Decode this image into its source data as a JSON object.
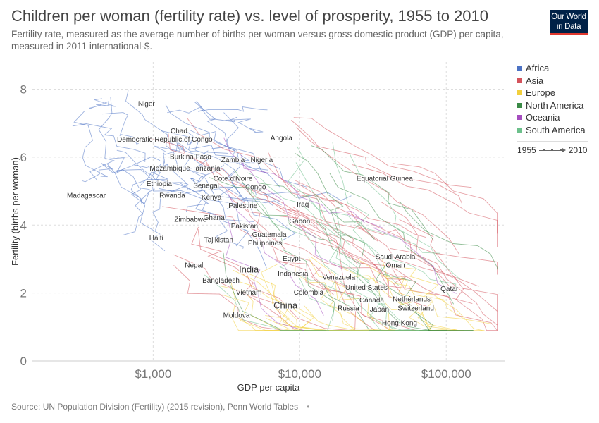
{
  "header": {
    "title": "Children per woman (fertility rate) vs. level of prosperity, 1955 to 2010",
    "subtitle": "Fertility rate, measured as the average number of births per woman versus gross domestic product (GDP) per capita, measured in 2011 international-$.",
    "logo_line1": "Our World",
    "logo_line2": "in Data"
  },
  "footer": {
    "source": "Source: UN Population Division (Fertility) (2015 revision), Penn World Tables"
  },
  "legend": {
    "timeline_start": "1955",
    "timeline_end": "2010"
  },
  "colors": {
    "Africa": "#4c72c4",
    "Asia": "#d4535c",
    "Europe": "#f2cf3c",
    "North America": "#3a8a46",
    "Oceania": "#a54dbf",
    "South America": "#6cc08b",
    "grid": "#dddddd",
    "axis_text": "#777777"
  },
  "chart_data": {
    "type": "scatter",
    "title": "Children per woman (fertility rate) vs. level of prosperity, 1955 to 2010",
    "xlabel": "GDP per capita",
    "ylabel": "Fertility (births per woman)",
    "x_scale": "log",
    "xlim": [
      150,
      250000
    ],
    "ylim": [
      0,
      8.8
    ],
    "x_ticks": [
      1000,
      10000,
      100000
    ],
    "x_tick_labels": [
      "$1,000",
      "$10,000",
      "$100,000"
    ],
    "y_ticks": [
      0,
      2,
      4,
      6,
      8
    ],
    "y_tick_labels": [
      "0",
      "2",
      "4",
      "6",
      "8"
    ],
    "legend_position": "right",
    "series_names": [
      "Africa",
      "Asia",
      "Europe",
      "North America",
      "Oceania",
      "South America"
    ],
    "labels": [
      {
        "name": "Niger",
        "x": 900,
        "y": 7.5
      },
      {
        "name": "Chad",
        "x": 1500,
        "y": 6.7
      },
      {
        "name": "Democratic Republic of Congo",
        "x": 1200,
        "y": 6.45
      },
      {
        "name": "Angola",
        "x": 7500,
        "y": 6.5
      },
      {
        "name": "Burkina Faso",
        "x": 1800,
        "y": 5.95
      },
      {
        "name": "Zambia",
        "x": 3500,
        "y": 5.85
      },
      {
        "name": "Nigeria",
        "x": 5500,
        "y": 5.85
      },
      {
        "name": "Mozambique",
        "x": 1300,
        "y": 5.6
      },
      {
        "name": "Tanzania",
        "x": 2300,
        "y": 5.6
      },
      {
        "name": "Equatorial Guinea",
        "x": 38000,
        "y": 5.3
      },
      {
        "name": "Cote d'Ivoire",
        "x": 3500,
        "y": 5.3
      },
      {
        "name": "Ethiopia",
        "x": 1100,
        "y": 5.15
      },
      {
        "name": "Senegal",
        "x": 2300,
        "y": 5.1
      },
      {
        "name": "Congo",
        "x": 5000,
        "y": 5.05
      },
      {
        "name": "Madagascar",
        "x": 350,
        "y": 4.8
      },
      {
        "name": "Rwanda",
        "x": 1350,
        "y": 4.8
      },
      {
        "name": "Kenya",
        "x": 2500,
        "y": 4.75
      },
      {
        "name": "Iraq",
        "x": 10500,
        "y": 4.55
      },
      {
        "name": "Palestine",
        "x": 4100,
        "y": 4.5
      },
      {
        "name": "Zimbabwe",
        "x": 1800,
        "y": 4.1
      },
      {
        "name": "Ghana",
        "x": 2600,
        "y": 4.15
      },
      {
        "name": "Gabon",
        "x": 10000,
        "y": 4.05
      },
      {
        "name": "Pakistan",
        "x": 4200,
        "y": 3.9
      },
      {
        "name": "Guatemala",
        "x": 6200,
        "y": 3.65
      },
      {
        "name": "Haiti",
        "x": 1050,
        "y": 3.55
      },
      {
        "name": "Tajikistan",
        "x": 2800,
        "y": 3.5
      },
      {
        "name": "Philippines",
        "x": 5800,
        "y": 3.4
      },
      {
        "name": "Saudi Arabia",
        "x": 45000,
        "y": 3.0
      },
      {
        "name": "Egypt",
        "x": 8800,
        "y": 2.95
      },
      {
        "name": "Nepal",
        "x": 1900,
        "y": 2.75
      },
      {
        "name": "Oman",
        "x": 45000,
        "y": 2.75
      },
      {
        "name": "India",
        "x": 4500,
        "y": 2.6
      },
      {
        "name": "Indonesia",
        "x": 9000,
        "y": 2.5
      },
      {
        "name": "Venezuela",
        "x": 18500,
        "y": 2.4
      },
      {
        "name": "Bangladesh",
        "x": 2900,
        "y": 2.3
      },
      {
        "name": "United States",
        "x": 28500,
        "y": 2.1
      },
      {
        "name": "Qatar",
        "x": 105000,
        "y": 2.05
      },
      {
        "name": "Colombia",
        "x": 11500,
        "y": 1.95
      },
      {
        "name": "Vietnam",
        "x": 4500,
        "y": 1.95
      },
      {
        "name": "Nethérlands",
        "x": 58000,
        "y": 1.75
      },
      {
        "name": "Canada",
        "x": 31000,
        "y": 1.72
      },
      {
        "name": "China",
        "x": 8000,
        "y": 1.55
      },
      {
        "name": "Russia",
        "x": 21500,
        "y": 1.48
      },
      {
        "name": "Switzerland",
        "x": 62000,
        "y": 1.48
      },
      {
        "name": "Japan",
        "x": 35000,
        "y": 1.45
      },
      {
        "name": "Moldova",
        "x": 3700,
        "y": 1.28
      },
      {
        "name": "Hong Kong",
        "x": 48000,
        "y": 1.05
      }
    ]
  }
}
